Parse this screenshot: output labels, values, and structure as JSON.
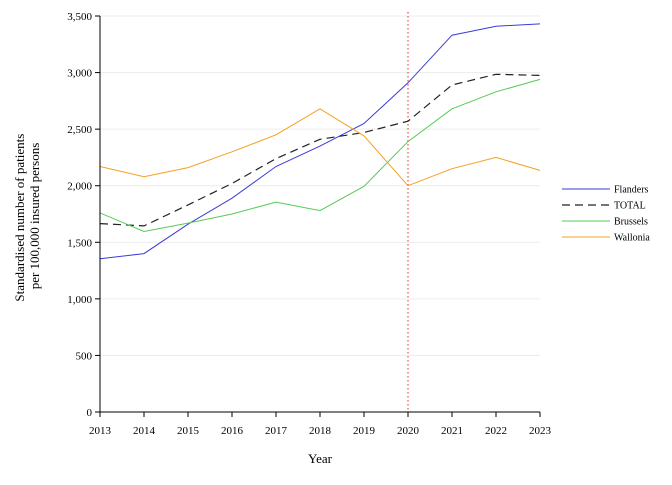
{
  "chart_data": {
    "type": "line",
    "xlabel": "Year",
    "ylabel": [
      "Standardised number of patients",
      "per 100,000 insured persons"
    ],
    "x": [
      2013,
      2014,
      2015,
      2016,
      2017,
      2018,
      2019,
      2020,
      2021,
      2022,
      2023
    ],
    "xlim": [
      2013,
      2023
    ],
    "ylim": [
      0,
      3500
    ],
    "y_ticks": [
      0,
      500,
      1000,
      1500,
      2000,
      2500,
      3000,
      3500
    ],
    "y_tick_labels": [
      "0",
      "500",
      "1,000",
      "1,500",
      "2,000",
      "2,500",
      "3,000",
      "3,500"
    ],
    "x_tick_labels": [
      "2013",
      "2014",
      "2015",
      "2016",
      "2017",
      "2018",
      "2019",
      "2020",
      "2021",
      "2022",
      "2023"
    ],
    "grid": "horizontal",
    "reference_line": {
      "x": 2020,
      "color": "#d9534f",
      "style": "dotted"
    },
    "legend_position": "right",
    "series": [
      {
        "name": "Flanders",
        "color": "#3b3bd9",
        "dash": "solid",
        "values": [
          1355,
          1400,
          1660,
          1890,
          2170,
          2350,
          2550,
          2910,
          3330,
          3410,
          3430
        ]
      },
      {
        "name": "TOTAL",
        "color": "#222222",
        "dash": "dashed",
        "values": [
          1665,
          1645,
          1830,
          2020,
          2240,
          2410,
          2470,
          2570,
          2890,
          2985,
          2975
        ]
      },
      {
        "name": "Brussels",
        "color": "#55cc55",
        "dash": "solid",
        "values": [
          1760,
          1595,
          1670,
          1750,
          1855,
          1780,
          1995,
          2390,
          2680,
          2830,
          2940
        ]
      },
      {
        "name": "Wallonia",
        "color": "#f5a020",
        "dash": "solid",
        "values": [
          2170,
          2080,
          2160,
          2300,
          2450,
          2680,
          2440,
          2000,
          2150,
          2250,
          2135
        ]
      }
    ]
  }
}
